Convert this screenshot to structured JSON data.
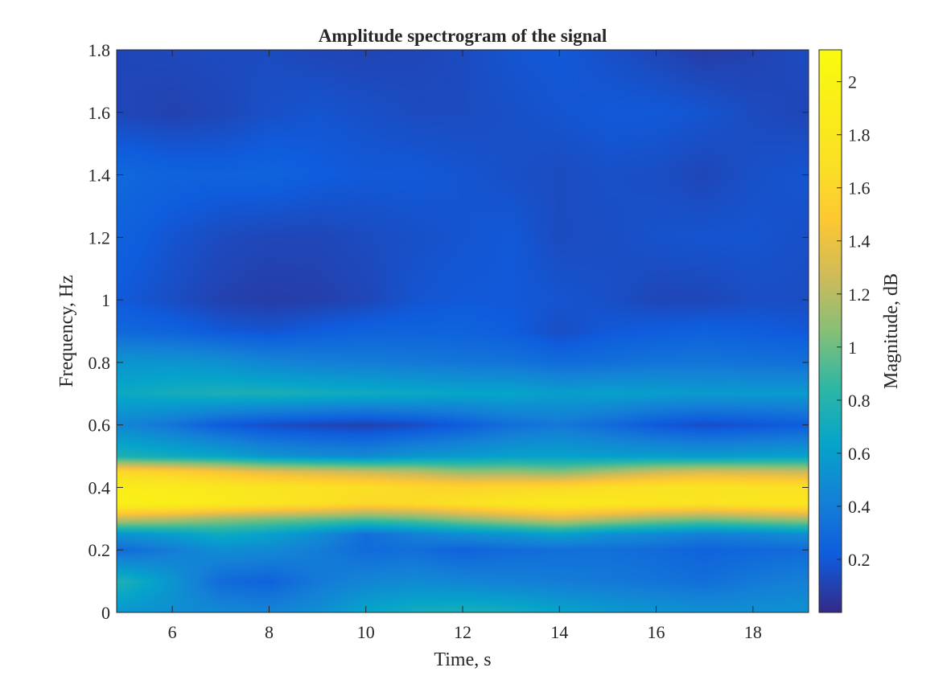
{
  "chart_data": {
    "type": "heatmap",
    "title": "Amplitude spectrogram of the signal",
    "xlabel": "Time, s",
    "ylabel": "Frequency, Hz",
    "colorbar_label": "Magnitude, dB",
    "xlim": [
      4.85,
      19.15
    ],
    "ylim": [
      0,
      1.8
    ],
    "clim": [
      0.0,
      2.12
    ],
    "colormap": "parula",
    "x_ticks": [
      6,
      8,
      10,
      12,
      14,
      16,
      18
    ],
    "x_tick_labels": [
      "6",
      "8",
      "10",
      "12",
      "14",
      "16",
      "18"
    ],
    "y_ticks": [
      0,
      0.2,
      0.4,
      0.6,
      0.8,
      1.0,
      1.2,
      1.4,
      1.6,
      1.8
    ],
    "y_tick_labels": [
      "0",
      "0.2",
      "0.4",
      "0.6",
      "0.8",
      "1",
      "1.2",
      "1.4",
      "1.6",
      "1.8"
    ],
    "colorbar_ticks": [
      0.2,
      0.4,
      0.6,
      0.8,
      1.0,
      1.2,
      1.4,
      1.6,
      1.8,
      2.0
    ],
    "colorbar_tick_labels": [
      "0.2",
      "0.4",
      "0.6",
      "0.8",
      "1",
      "1.2",
      "1.4",
      "1.6",
      "1.8",
      "2"
    ],
    "x": [
      5,
      6,
      7,
      8,
      9,
      10,
      11,
      12,
      13,
      14,
      15,
      16,
      17,
      18,
      19
    ],
    "y": [
      0,
      0.1,
      0.2,
      0.25,
      0.3,
      0.35,
      0.4,
      0.45,
      0.5,
      0.6,
      0.7,
      0.8,
      0.9,
      1.0,
      1.2,
      1.4,
      1.6,
      1.8
    ],
    "z": [
      [
        0.55,
        0.5,
        0.48,
        0.45,
        0.5,
        0.65,
        0.72,
        0.75,
        0.72,
        0.65,
        0.58,
        0.55,
        0.52,
        0.52,
        0.52
      ],
      [
        0.75,
        0.55,
        0.3,
        0.25,
        0.38,
        0.45,
        0.48,
        0.45,
        0.42,
        0.4,
        0.38,
        0.35,
        0.32,
        0.38,
        0.42
      ],
      [
        0.3,
        0.4,
        0.5,
        0.48,
        0.4,
        0.3,
        0.32,
        0.25,
        0.3,
        0.32,
        0.32,
        0.3,
        0.25,
        0.28,
        0.3
      ],
      [
        0.55,
        0.6,
        0.7,
        0.62,
        0.5,
        0.32,
        0.42,
        0.5,
        0.55,
        0.62,
        0.52,
        0.48,
        0.42,
        0.45,
        0.5
      ],
      [
        1.25,
        1.2,
        1.1,
        1.05,
        1.0,
        0.95,
        1.0,
        1.1,
        1.2,
        1.3,
        1.2,
        1.1,
        1.05,
        1.1,
        1.15
      ],
      [
        1.95,
        1.92,
        1.85,
        1.78,
        1.72,
        1.62,
        1.65,
        1.72,
        1.8,
        1.85,
        1.82,
        1.78,
        1.75,
        1.78,
        1.8
      ],
      [
        1.88,
        1.85,
        1.8,
        1.75,
        1.72,
        1.68,
        1.62,
        1.58,
        1.6,
        1.62,
        1.68,
        1.72,
        1.75,
        1.72,
        1.7
      ],
      [
        1.6,
        1.55,
        1.45,
        1.35,
        1.3,
        1.25,
        1.2,
        1.1,
        1.1,
        1.05,
        1.15,
        1.25,
        1.3,
        1.28,
        1.25
      ],
      [
        0.75,
        0.7,
        0.65,
        0.55,
        0.5,
        0.48,
        0.55,
        0.58,
        0.62,
        0.62,
        0.6,
        0.6,
        0.58,
        0.6,
        0.62
      ],
      [
        0.45,
        0.35,
        0.22,
        0.15,
        0.12,
        0.1,
        0.14,
        0.22,
        0.32,
        0.38,
        0.3,
        0.2,
        0.15,
        0.18,
        0.22
      ],
      [
        0.68,
        0.72,
        0.75,
        0.75,
        0.72,
        0.7,
        0.68,
        0.65,
        0.65,
        0.6,
        0.62,
        0.6,
        0.58,
        0.58,
        0.58
      ],
      [
        0.55,
        0.55,
        0.52,
        0.45,
        0.42,
        0.4,
        0.38,
        0.36,
        0.35,
        0.3,
        0.32,
        0.35,
        0.36,
        0.34,
        0.33
      ],
      [
        0.28,
        0.25,
        0.2,
        0.18,
        0.22,
        0.25,
        0.25,
        0.25,
        0.22,
        0.15,
        0.2,
        0.22,
        0.24,
        0.22,
        0.2
      ],
      [
        0.2,
        0.15,
        0.1,
        0.08,
        0.09,
        0.12,
        0.18,
        0.2,
        0.2,
        0.18,
        0.16,
        0.12,
        0.12,
        0.15,
        0.15
      ],
      [
        0.24,
        0.18,
        0.14,
        0.12,
        0.12,
        0.14,
        0.16,
        0.18,
        0.2,
        0.14,
        0.15,
        0.17,
        0.18,
        0.18,
        0.16
      ],
      [
        0.28,
        0.25,
        0.24,
        0.25,
        0.22,
        0.2,
        0.2,
        0.18,
        0.16,
        0.14,
        0.16,
        0.15,
        0.12,
        0.16,
        0.18
      ],
      [
        0.12,
        0.1,
        0.12,
        0.16,
        0.18,
        0.16,
        0.14,
        0.14,
        0.16,
        0.18,
        0.2,
        0.2,
        0.18,
        0.14,
        0.12
      ],
      [
        0.12,
        0.13,
        0.14,
        0.14,
        0.12,
        0.11,
        0.12,
        0.14,
        0.18,
        0.2,
        0.16,
        0.12,
        0.08,
        0.1,
        0.14
      ]
    ]
  }
}
